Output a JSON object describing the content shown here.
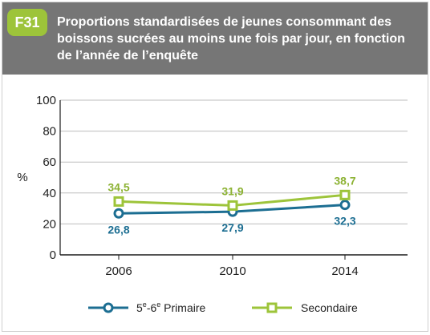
{
  "header": {
    "badge": "F31",
    "title": "Proportions standardisées de jeunes consommant des boissons sucrées au moins une fois par jour, en fonction de l’année de l’enquête"
  },
  "colors": {
    "header_bg": "#767676",
    "badge_bg": "#9dc43a",
    "primaire": "#1c6e92",
    "secondaire": "#9dc43a",
    "primaire_label": "#1c6e92",
    "secondaire_label": "#8cb233"
  },
  "chart_data": {
    "type": "line",
    "title": "Proportions standardisées de jeunes consommant des boissons sucrées au moins une fois par jour, en fonction de l’année de l’enquête",
    "ylabel": "%",
    "xlabel": "",
    "ylim": [
      0,
      100
    ],
    "yticks": [
      "0",
      "20",
      "40",
      "60",
      "80",
      "100"
    ],
    "categories": [
      "2006",
      "2010",
      "2014"
    ],
    "grid": true,
    "legend_position": "bottom",
    "series": [
      {
        "name": "5e-6e Primaire",
        "marker": "circle",
        "values": [
          26.8,
          27.9,
          32.3
        ],
        "labels": [
          "26,8",
          "27,9",
          "32,3"
        ]
      },
      {
        "name": "Secondaire",
        "marker": "square",
        "values": [
          34.5,
          31.9,
          38.7
        ],
        "labels": [
          "34,5",
          "31,9",
          "38,7"
        ]
      }
    ]
  },
  "legend": {
    "primaire_base": "5",
    "primaire_sup1": "e",
    "primaire_mid": "-6",
    "primaire_sup2": "e",
    "primaire_rest": " Primaire",
    "secondaire": "Secondaire"
  }
}
